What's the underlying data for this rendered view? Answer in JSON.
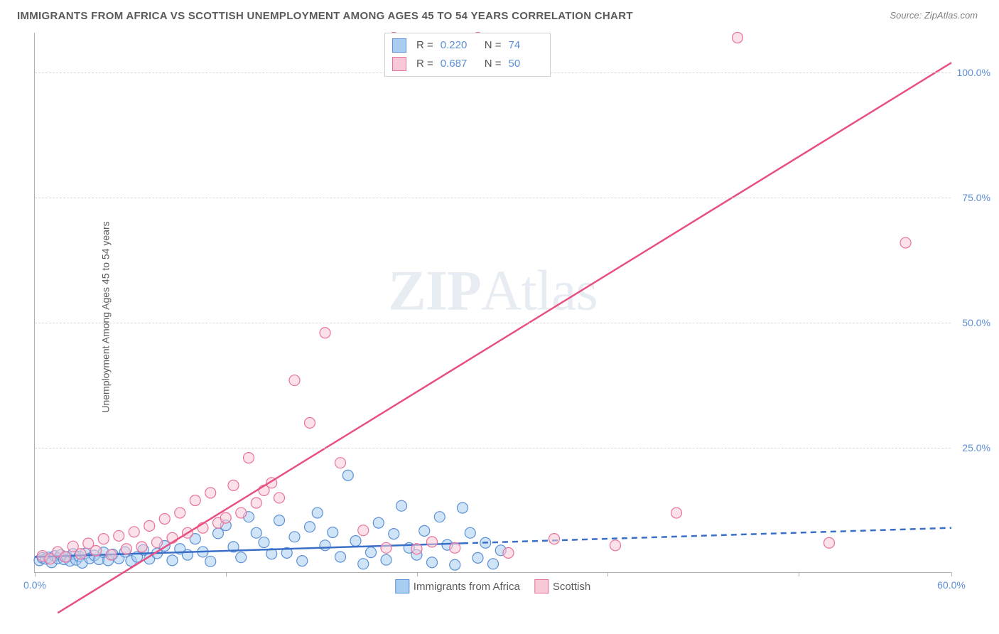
{
  "title": "IMMIGRANTS FROM AFRICA VS SCOTTISH UNEMPLOYMENT AMONG AGES 45 TO 54 YEARS CORRELATION CHART",
  "source_label": "Source: ZipAtlas.com",
  "y_axis_label": "Unemployment Among Ages 45 to 54 years",
  "watermark_bold": "ZIP",
  "watermark_rest": "Atlas",
  "chart": {
    "type": "scatter",
    "xlim": [
      0,
      60
    ],
    "ylim": [
      0,
      108
    ],
    "x_ticks": [
      0,
      12.5,
      25,
      37.5,
      50,
      60
    ],
    "x_tick_labels": {
      "0": "0.0%",
      "60": "60.0%"
    },
    "y_ticks": [
      25,
      50,
      75,
      100
    ],
    "y_tick_labels": {
      "25": "25.0%",
      "50": "50.0%",
      "75": "75.0%",
      "100": "100.0%"
    },
    "background_color": "#ffffff",
    "grid_color": "#d8d8d8",
    "axis_color": "#b0b0b0",
    "label_fontsize": 14,
    "tick_color": "#5b8fd6",
    "marker_radius": 7.5,
    "marker_opacity": 0.55,
    "marker_stroke_width": 1.2,
    "series": [
      {
        "name": "Immigrants from Africa",
        "color_fill": "#a9cdf0",
        "color_stroke": "#5b8fd6",
        "r_value": "0.220",
        "n_value": "74",
        "trend": {
          "x1": 0,
          "y1": 3.2,
          "x2": 60,
          "y2": 9.0,
          "solid_until_x": 28,
          "color": "#3a6fc9",
          "width": 2.5
        },
        "points": [
          [
            0.3,
            2.5
          ],
          [
            0.5,
            3.0
          ],
          [
            0.7,
            2.8
          ],
          [
            0.9,
            3.1
          ],
          [
            1.1,
            2.1
          ],
          [
            1.3,
            3.4
          ],
          [
            1.5,
            2.9
          ],
          [
            1.7,
            3.6
          ],
          [
            1.9,
            2.7
          ],
          [
            2.1,
            3.2
          ],
          [
            2.3,
            2.4
          ],
          [
            2.5,
            3.8
          ],
          [
            2.7,
            2.6
          ],
          [
            2.9,
            3.3
          ],
          [
            3.1,
            2.0
          ],
          [
            3.3,
            3.9
          ],
          [
            3.6,
            2.9
          ],
          [
            3.9,
            3.5
          ],
          [
            4.2,
            2.7
          ],
          [
            4.5,
            4.1
          ],
          [
            4.8,
            2.5
          ],
          [
            5.1,
            3.7
          ],
          [
            5.5,
            2.9
          ],
          [
            5.9,
            4.2
          ],
          [
            6.3,
            2.4
          ],
          [
            6.7,
            3.2
          ],
          [
            7.1,
            4.6
          ],
          [
            7.5,
            2.8
          ],
          [
            8.0,
            3.9
          ],
          [
            8.5,
            5.4
          ],
          [
            9.0,
            2.5
          ],
          [
            9.5,
            4.8
          ],
          [
            10.0,
            3.6
          ],
          [
            10.5,
            6.8
          ],
          [
            11.0,
            4.2
          ],
          [
            11.5,
            2.3
          ],
          [
            12.0,
            7.9
          ],
          [
            12.5,
            9.5
          ],
          [
            13.0,
            5.2
          ],
          [
            13.5,
            3.1
          ],
          [
            14.0,
            11.2
          ],
          [
            14.5,
            8.0
          ],
          [
            15.0,
            6.1
          ],
          [
            15.5,
            3.8
          ],
          [
            16.0,
            10.5
          ],
          [
            16.5,
            4.0
          ],
          [
            17.0,
            7.2
          ],
          [
            17.5,
            2.4
          ],
          [
            18.0,
            9.2
          ],
          [
            18.5,
            12.0
          ],
          [
            19.0,
            5.5
          ],
          [
            19.5,
            8.1
          ],
          [
            20.0,
            3.2
          ],
          [
            20.5,
            19.5
          ],
          [
            21.0,
            6.4
          ],
          [
            21.5,
            1.8
          ],
          [
            22.0,
            4.1
          ],
          [
            22.5,
            10.0
          ],
          [
            23.0,
            2.6
          ],
          [
            23.5,
            7.8
          ],
          [
            24.0,
            13.4
          ],
          [
            24.5,
            5.0
          ],
          [
            25.0,
            3.6
          ],
          [
            25.5,
            8.4
          ],
          [
            26.0,
            2.1
          ],
          [
            26.5,
            11.2
          ],
          [
            27.0,
            5.6
          ],
          [
            27.5,
            1.6
          ],
          [
            28.0,
            13.0
          ],
          [
            28.5,
            8.0
          ],
          [
            29.0,
            3.0
          ],
          [
            29.5,
            6.0
          ],
          [
            30.0,
            1.8
          ],
          [
            30.5,
            4.5
          ]
        ]
      },
      {
        "name": "Scottish",
        "color_fill": "#f7c8d5",
        "color_stroke": "#e8719c",
        "r_value": "0.687",
        "n_value": "50",
        "trend": {
          "x1": 1.5,
          "y1": -8,
          "x2": 60,
          "y2": 102,
          "solid_until_x": 60,
          "color": "#e8507f",
          "width": 2.5
        },
        "points": [
          [
            0.5,
            3.4
          ],
          [
            1.0,
            2.8
          ],
          [
            1.5,
            4.2
          ],
          [
            2.0,
            3.2
          ],
          [
            2.5,
            5.3
          ],
          [
            3.0,
            3.8
          ],
          [
            3.5,
            5.9
          ],
          [
            4.0,
            4.4
          ],
          [
            4.5,
            6.8
          ],
          [
            5.0,
            3.6
          ],
          [
            5.5,
            7.4
          ],
          [
            6.0,
            4.8
          ],
          [
            6.5,
            8.2
          ],
          [
            7.0,
            5.2
          ],
          [
            7.5,
            9.4
          ],
          [
            8.0,
            6.1
          ],
          [
            8.5,
            10.8
          ],
          [
            9.0,
            7.0
          ],
          [
            9.5,
            12.0
          ],
          [
            10.0,
            8.0
          ],
          [
            10.5,
            14.5
          ],
          [
            11.0,
            9.0
          ],
          [
            11.5,
            16.0
          ],
          [
            12.0,
            10.0
          ],
          [
            12.5,
            11.0
          ],
          [
            13.0,
            17.5
          ],
          [
            13.5,
            12.0
          ],
          [
            14.0,
            23.0
          ],
          [
            14.5,
            14.0
          ],
          [
            15.0,
            16.5
          ],
          [
            15.5,
            18.0
          ],
          [
            16.0,
            15.0
          ],
          [
            17.0,
            38.5
          ],
          [
            18.0,
            30.0
          ],
          [
            19.0,
            48.0
          ],
          [
            20.0,
            22.0
          ],
          [
            21.5,
            8.5
          ],
          [
            23.0,
            5.0
          ],
          [
            23.5,
            107.0
          ],
          [
            25.0,
            4.8
          ],
          [
            26.0,
            6.2
          ],
          [
            27.5,
            5.0
          ],
          [
            29.0,
            107.0
          ],
          [
            31.0,
            4.0
          ],
          [
            34.0,
            6.8
          ],
          [
            38.0,
            5.5
          ],
          [
            42.0,
            12.0
          ],
          [
            46.0,
            107.0
          ],
          [
            52.0,
            6.0
          ],
          [
            57.0,
            66.0
          ]
        ]
      }
    ]
  },
  "legend_bottom": [
    {
      "label": "Immigrants from Africa",
      "fill": "#a9cdf0",
      "stroke": "#5b8fd6"
    },
    {
      "label": "Scottish",
      "fill": "#f7c8d5",
      "stroke": "#e8719c"
    }
  ]
}
